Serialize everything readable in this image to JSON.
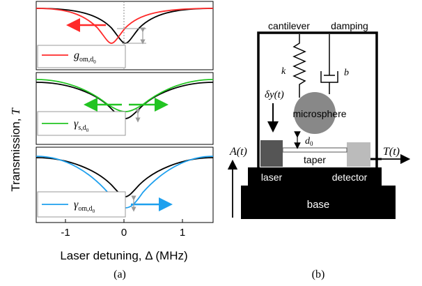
{
  "panel_a": {
    "ylabel": "Transmission, ",
    "ylabel_symbol": "T",
    "xlabel": "Laser detuning, Δ (MHz)",
    "xticks": [
      "-1",
      "0",
      "1"
    ],
    "legend": [
      {
        "symbol": "g",
        "subscript": "om,d",
        "subsub": "0",
        "color": "#ff2a2a"
      },
      {
        "symbol": "γ",
        "subscript": "s,d",
        "subsub": "0",
        "color": "#22c422"
      },
      {
        "symbol": "γ",
        "subscript": "om,d",
        "subsub": "0",
        "color": "#1ea0ee"
      }
    ],
    "caption": "(a)"
  },
  "panel_b": {
    "labels": {
      "cantilever": "cantilever",
      "damping": "damping",
      "k": "k",
      "b": "b",
      "delta_y": "δy(t)",
      "microsphere": "microsphere",
      "d0": "d",
      "d0_sub": "0",
      "A": "A(t)",
      "T": "T(t)",
      "taper": "taper",
      "laser": "laser",
      "detector": "detector",
      "base": "base"
    },
    "caption": "(b)"
  }
}
